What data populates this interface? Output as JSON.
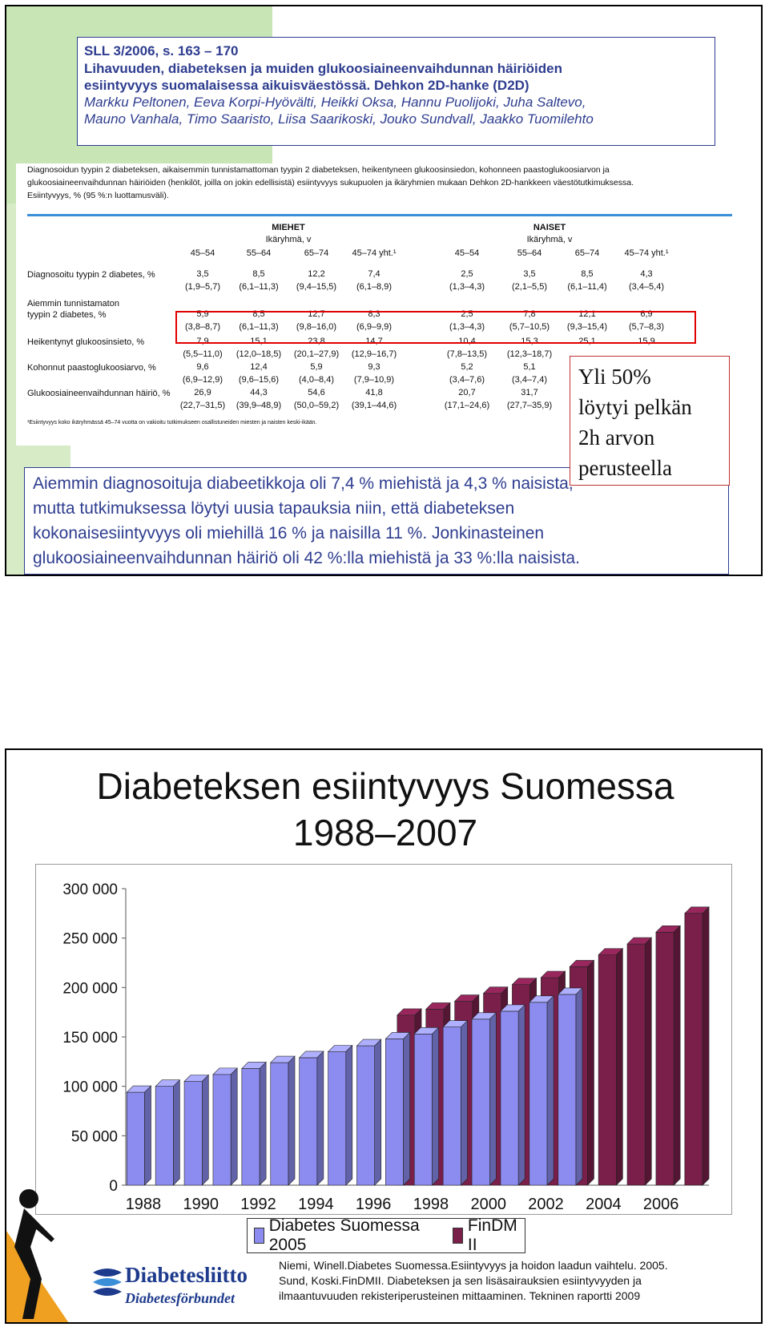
{
  "slide1": {
    "reference": {
      "line1": "SLL 3/2006, s. 163 – 170",
      "line2": "Lihavuuden, diabeteksen ja muiden glukoosiaineenvaihdunnan häiriöiden",
      "line3": "esiintyvyys suomalaisessa aikuisväestössä. Dehkon 2D-hanke (D2D)",
      "authors1": "Markku Peltonen, Eeva Korpi-Hyövälti, Heikki Oksa, Hannu Puolijoki, Juha Saltevo,",
      "authors2": "Mauno Vanhala, Timo Saaristo, Liisa Saarikoski, Jouko Sundvall, Jaakko Tuomilehto"
    },
    "table": {
      "caption1": "Diagnosoidun tyypin 2 diabeteksen, aikaisemmin tunnistamattoman tyypin 2 diabeteksen, heikentyneen glukoosinsiedon, kohonneen paastoglukoosiarvon ja",
      "caption2": "glukoosiaineenvaihdunnan häiriöiden (henkilöt, joilla on jokin edellisistä) esiintyvyys sukupuolen ja ikäryhmien mukaan Dehkon 2D-hankkeen väestötutkimuksessa.",
      "caption3": "Esiintyvyys, % (95 %:n luottamusväli).",
      "men": "MIEHET",
      "women": "NAISET",
      "agegroup": "Ikäryhmä, v",
      "cols": [
        "45–54",
        "55–64",
        "65–74",
        "45–74 yht.¹",
        "45–54",
        "55–64",
        "65–74",
        "45–74 yht.¹"
      ],
      "rows": [
        {
          "label": "Diagnosoitu tyypin 2 diabetes, %",
          "label2": "",
          "vals": [
            "3,5",
            "8,5",
            "12,2",
            "7,4",
            "2,5",
            "3,5",
            "8,5",
            "4,3"
          ],
          "ci": [
            "(1,9–5,7)",
            "(6,1–11,3)",
            "(9,4–15,5)",
            "(6,1–8,9)",
            "(1,3–4,3)",
            "(2,1–5,5)",
            "(6,1–11,4)",
            "(3,4–5,4)"
          ]
        },
        {
          "label": "Aiemmin tunnistamaton",
          "label2": "tyypin 2 diabetes, %",
          "vals": [
            "5,9",
            "8,5",
            "12,7",
            "8,3",
            "2,5",
            "7,8",
            "12,1",
            "6,9"
          ],
          "ci": [
            "(3,8–8,7)",
            "(6,1–11,3)",
            "(9,8–16,0)",
            "(6,9–9,9)",
            "(1,3–4,3)",
            "(5,7–10,5)",
            "(9,3–15,4)",
            "(5,7–8,3)"
          ]
        },
        {
          "label": "Heikentynyt glukoosinsieto, %",
          "label2": "",
          "vals": [
            "7,9",
            "15,1",
            "23,8",
            "14,7",
            "10,4",
            "15,3",
            "25,1",
            "15,9"
          ],
          "ci": [
            "(5,5–11,0)",
            "(12,0–18,5)",
            "(20,1–27,9)",
            "(12,9–16,7)",
            "(7,8–13,5)",
            "(12,3–18,7)",
            "",
            ""
          ]
        },
        {
          "label": "Kohonnut paastoglukoosiarvo, %",
          "label2": "",
          "vals": [
            "9,6",
            "12,4",
            "5,9",
            "9,3",
            "5,2",
            "5,1",
            "",
            ""
          ],
          "ci": [
            "(6,9–12,9)",
            "(9,6–15,6)",
            "(4,0–8,4)",
            "(7,9–10,9)",
            "(3,4–7,6)",
            "(3,4–7,4)",
            "",
            ""
          ]
        },
        {
          "label": "Glukoosiaineenvaihdunnan häiriö, %",
          "label2": "",
          "vals": [
            "26,9",
            "44,3",
            "54,6",
            "41,8",
            "20,7",
            "31,7",
            "",
            ""
          ],
          "ci": [
            "(22,7–31,5)",
            "(39,9–48,9)",
            "(50,0–59,2)",
            "(39,1–44,6)",
            "(17,1–24,6)",
            "(27,7–35,9)",
            "",
            ""
          ]
        }
      ],
      "footnote": "¹Esiintyvyys koko ikäryhmässä 45–74 vuotta on vakioitu tutkimukseen osallistuneiden miesten ja naisten keski-ikään."
    },
    "callout": [
      "Yli 50%",
      "löytyi pelkän",
      "2h arvon",
      "perusteella"
    ],
    "summary": [
      "Aiemmin diagnosoituja diabeetikkoja oli 7,4 % miehistä ja 4,3 % naisista,",
      "mutta tutkimuksessa löytyi uusia tapauksia niin, että diabeteksen",
      "kokonaisesiintyvyys oli miehillä 16 % ja naisilla 11 %. Jonkinasteinen",
      "glukoosiaineenvaihdunnan häiriö oli 42 %:lla miehistä ja 33 %:lla naisista."
    ]
  },
  "slide2": {
    "title1": "Diabeteksen esiintyvyys Suomessa",
    "title2": "1988–2007",
    "citation": [
      "Niemi, Winell.Diabetes Suomessa.Esiintyvyys ja hoidon laadun vaihtelu. 2005.",
      "Sund, Koski.FinDMII. Diabeteksen ja sen lisäsairauksien esiintyvyyden ja",
      "ilmaantuvuuden rekisteriperusteinen mittaaminen. Tekninen raportti 2009"
    ],
    "logo_name": "Diabetesliitto",
    "logo_sub": "Diabetesförbundet"
  },
  "chart_data": {
    "type": "bar",
    "title": "Diabeteksen esiintyvyys Suomessa 1988–2007",
    "xlabel": "",
    "ylabel": "",
    "ylim": [
      0,
      300000
    ],
    "yticks": [
      "0",
      "50 000",
      "100 000",
      "150 000",
      "200 000",
      "250 000",
      "300 000"
    ],
    "xtick_labels": [
      "1988",
      "1990",
      "1992",
      "1994",
      "1996",
      "1998",
      "2000",
      "2002",
      "2004",
      "2006"
    ],
    "legend_position": "bottom",
    "series": [
      {
        "name": "Diabetes Suomessa 2005",
        "color": "#8c8cf0",
        "x": [
          1988,
          1989,
          1990,
          1991,
          1992,
          1993,
          1994,
          1995,
          1996,
          1997,
          1998,
          1999,
          2000,
          2001,
          2002,
          2003
        ],
        "values": [
          94000,
          100000,
          105000,
          112000,
          118000,
          124000,
          129000,
          135000,
          141000,
          148000,
          153000,
          160000,
          168000,
          176000,
          185000,
          193000
        ]
      },
      {
        "name": "FinDM II",
        "color": "#7a1f4a",
        "x": [
          1997,
          1998,
          1999,
          2000,
          2001,
          2002,
          2003,
          2004,
          2005,
          2006,
          2007
        ],
        "values": [
          172000,
          178000,
          186000,
          194000,
          203000,
          210000,
          221000,
          233000,
          244000,
          256000,
          275000
        ]
      }
    ]
  }
}
